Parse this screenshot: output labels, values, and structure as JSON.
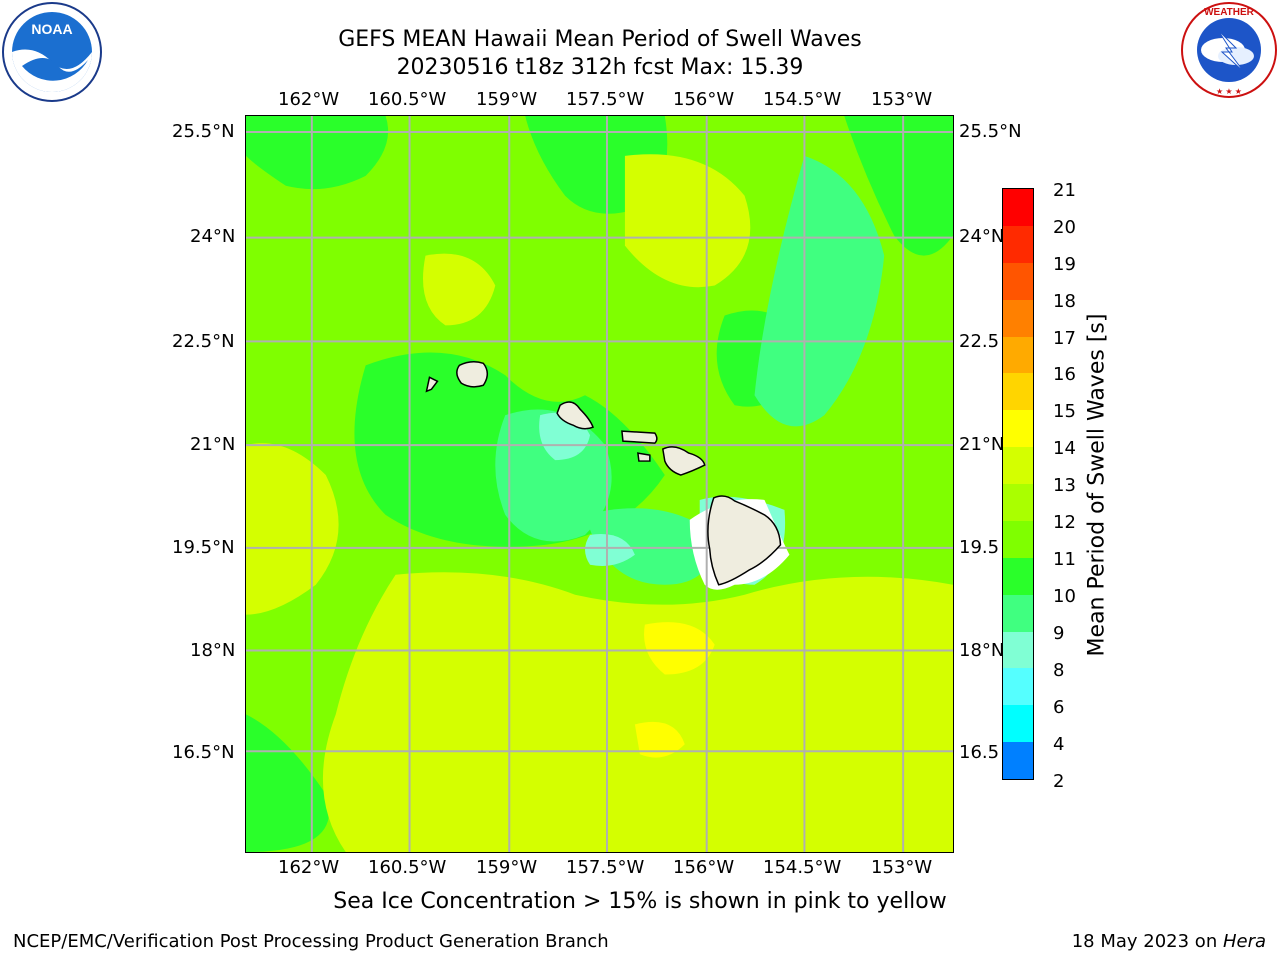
{
  "header": {
    "title_line1": "GEFS MEAN Hawaii Mean Period of Swell Waves",
    "title_line2": "20230516 t18z 312h fcst   Max: 15.39"
  },
  "logos": {
    "left": "NOAA",
    "right": "NATIONAL WEATHER SERVICE"
  },
  "map": {
    "lon_labels": [
      "162°W",
      "160.5°W",
      "159°W",
      "157.5°W",
      "156°W",
      "154.5°W",
      "153°W"
    ],
    "lat_labels_left": [
      "25.5°N",
      "24°N",
      "22.5°N",
      "21°N",
      "19.5°N",
      "18°N",
      "16.5°N"
    ],
    "lat_labels_right": [
      "25.5°N",
      "24°N",
      "22.5",
      "21°N",
      "19.5",
      "18°N",
      "16.5"
    ],
    "background_color": "#7cfc00",
    "grid_color": "#b0b0b0",
    "coast_color": "#000000",
    "land_color": "#efeddf"
  },
  "colorbar": {
    "label": "Mean Period of Swell Waves [s]",
    "ticks": [
      "21",
      "20",
      "19",
      "18",
      "17",
      "16",
      "15",
      "14",
      "13",
      "12",
      "11",
      "10",
      "9",
      "8",
      "6",
      "4",
      "2"
    ],
    "colors": [
      "#ff0000",
      "#ff2a00",
      "#ff5500",
      "#ff8000",
      "#ffaa00",
      "#ffd500",
      "#ffff00",
      "#d4ff00",
      "#aaff00",
      "#7fff00",
      "#2aff2a",
      "#40ff80",
      "#80ffd4",
      "#55ffff",
      "#00ffff",
      "#0080ff",
      "#0000ff"
    ]
  },
  "subnote": "Sea Ice Concentration > 15% is shown in pink to yellow",
  "footer": {
    "left": "NCEP/EMC/Verification Post Processing Product Generation Branch",
    "right_date": "18 May 2023 on ",
    "right_host": "Hera"
  }
}
